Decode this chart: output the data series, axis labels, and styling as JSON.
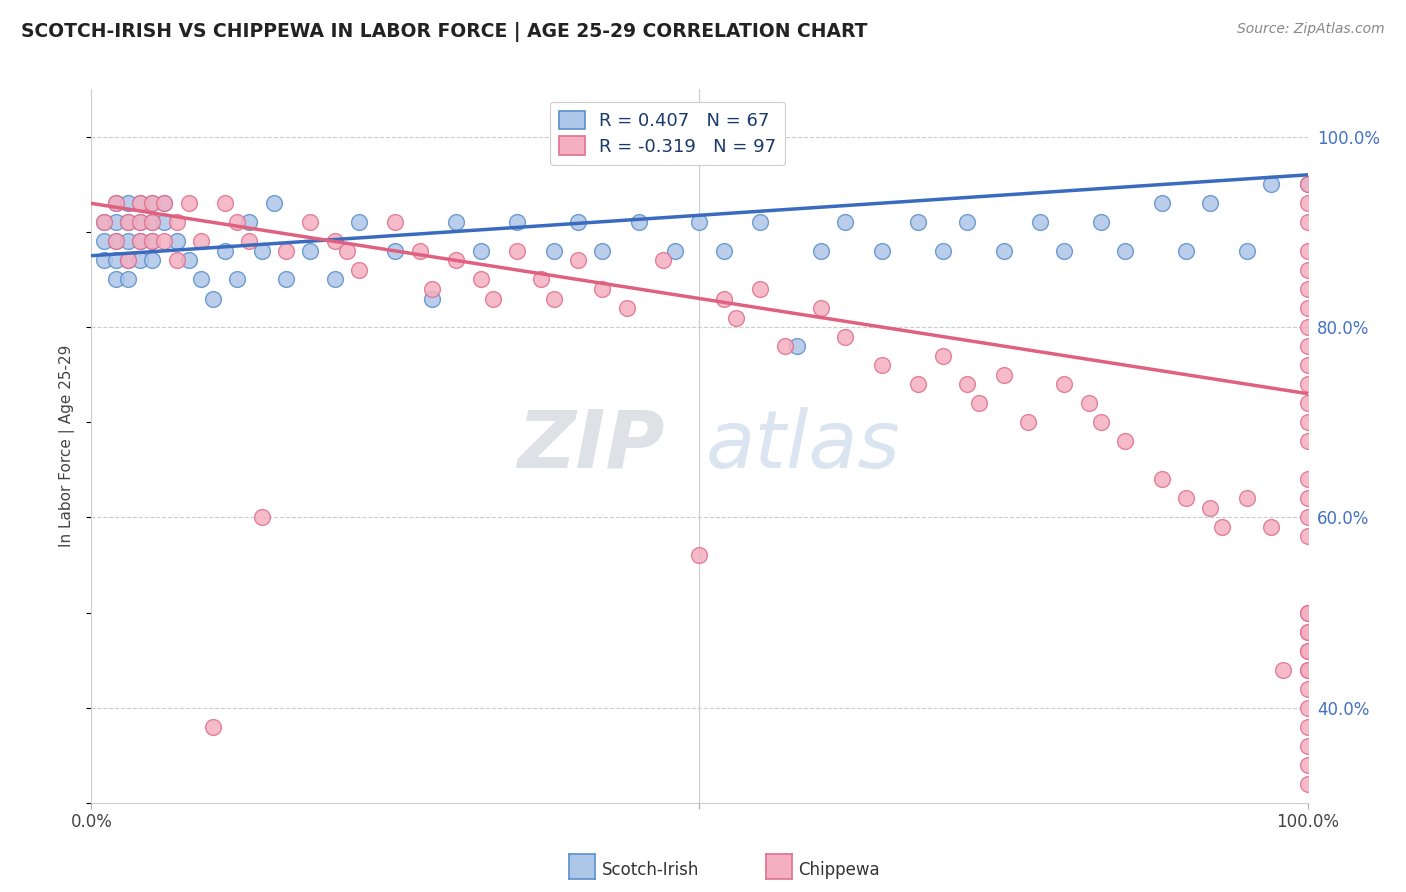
{
  "title": "SCOTCH-IRISH VS CHIPPEWA IN LABOR FORCE | AGE 25-29 CORRELATION CHART",
  "source_text": "Source: ZipAtlas.com",
  "ylabel": "In Labor Force | Age 25-29",
  "xlim": [
    0.0,
    1.0
  ],
  "ylim": [
    0.3,
    1.05
  ],
  "y_ticks_right": [
    0.4,
    0.6,
    0.8,
    1.0
  ],
  "y_tick_labels_right": [
    "40.0%",
    "60.0%",
    "80.0%",
    "100.0%"
  ],
  "scotch_irish_R": 0.407,
  "scotch_irish_N": 67,
  "chippewa_R": -0.319,
  "chippewa_N": 97,
  "scotch_irish_color": "#aec6e8",
  "chippewa_color": "#f4afc0",
  "scotch_irish_edge_color": "#5b8fcc",
  "chippewa_edge_color": "#e07090",
  "scotch_irish_line_color": "#3a6bbf",
  "chippewa_line_color": "#e06080",
  "watermark_zip": "ZIP",
  "watermark_atlas": "atlas",
  "scotch_irish_x": [
    0.01,
    0.01,
    0.01,
    0.02,
    0.02,
    0.02,
    0.02,
    0.02,
    0.03,
    0.03,
    0.03,
    0.03,
    0.03,
    0.04,
    0.04,
    0.04,
    0.04,
    0.05,
    0.05,
    0.05,
    0.05,
    0.06,
    0.06,
    0.07,
    0.08,
    0.09,
    0.1,
    0.11,
    0.12,
    0.13,
    0.14,
    0.15,
    0.16,
    0.18,
    0.2,
    0.22,
    0.25,
    0.28,
    0.3,
    0.32,
    0.35,
    0.38,
    0.4,
    0.42,
    0.45,
    0.48,
    0.5,
    0.52,
    0.55,
    0.58,
    0.6,
    0.62,
    0.65,
    0.68,
    0.7,
    0.72,
    0.75,
    0.78,
    0.8,
    0.83,
    0.85,
    0.88,
    0.9,
    0.92,
    0.95,
    0.97,
    1.0
  ],
  "scotch_irish_y": [
    0.91,
    0.89,
    0.87,
    0.93,
    0.91,
    0.89,
    0.87,
    0.85,
    0.93,
    0.91,
    0.89,
    0.87,
    0.85,
    0.93,
    0.91,
    0.89,
    0.87,
    0.93,
    0.91,
    0.89,
    0.87,
    0.93,
    0.91,
    0.89,
    0.87,
    0.85,
    0.83,
    0.88,
    0.85,
    0.91,
    0.88,
    0.93,
    0.85,
    0.88,
    0.85,
    0.91,
    0.88,
    0.83,
    0.91,
    0.88,
    0.91,
    0.88,
    0.91,
    0.88,
    0.91,
    0.88,
    0.91,
    0.88,
    0.91,
    0.78,
    0.88,
    0.91,
    0.88,
    0.91,
    0.88,
    0.91,
    0.88,
    0.91,
    0.88,
    0.91,
    0.88,
    0.93,
    0.88,
    0.93,
    0.88,
    0.95,
    0.95
  ],
  "chippewa_x": [
    0.01,
    0.02,
    0.02,
    0.03,
    0.03,
    0.04,
    0.04,
    0.04,
    0.05,
    0.05,
    0.05,
    0.06,
    0.06,
    0.07,
    0.07,
    0.08,
    0.09,
    0.1,
    0.11,
    0.12,
    0.13,
    0.14,
    0.16,
    0.18,
    0.2,
    0.21,
    0.22,
    0.25,
    0.27,
    0.28,
    0.3,
    0.32,
    0.33,
    0.35,
    0.37,
    0.38,
    0.4,
    0.42,
    0.44,
    0.47,
    0.5,
    0.52,
    0.53,
    0.55,
    0.57,
    0.6,
    0.62,
    0.65,
    0.68,
    0.7,
    0.72,
    0.73,
    0.75,
    0.77,
    0.8,
    0.82,
    0.83,
    0.85,
    0.88,
    0.9,
    0.92,
    0.93,
    0.95,
    0.97,
    0.98,
    1.0,
    1.0,
    1.0,
    1.0,
    1.0,
    1.0,
    1.0,
    1.0,
    1.0,
    1.0,
    1.0,
    1.0,
    1.0,
    1.0,
    1.0,
    1.0,
    1.0,
    1.0,
    1.0,
    1.0,
    1.0,
    1.0,
    1.0,
    1.0,
    1.0,
    1.0,
    1.0,
    1.0,
    1.0,
    1.0,
    1.0,
    1.0
  ],
  "chippewa_y": [
    0.91,
    0.93,
    0.89,
    0.91,
    0.87,
    0.93,
    0.91,
    0.89,
    0.93,
    0.91,
    0.89,
    0.93,
    0.89,
    0.91,
    0.87,
    0.93,
    0.89,
    0.38,
    0.93,
    0.91,
    0.89,
    0.6,
    0.88,
    0.91,
    0.89,
    0.88,
    0.86,
    0.91,
    0.88,
    0.84,
    0.87,
    0.85,
    0.83,
    0.88,
    0.85,
    0.83,
    0.87,
    0.84,
    0.82,
    0.87,
    0.56,
    0.83,
    0.81,
    0.84,
    0.78,
    0.82,
    0.79,
    0.76,
    0.74,
    0.77,
    0.74,
    0.72,
    0.75,
    0.7,
    0.74,
    0.72,
    0.7,
    0.68,
    0.64,
    0.62,
    0.61,
    0.59,
    0.62,
    0.59,
    0.44,
    0.95,
    0.93,
    0.91,
    0.88,
    0.86,
    0.84,
    0.82,
    0.8,
    0.78,
    0.76,
    0.74,
    0.72,
    0.7,
    0.68,
    0.64,
    0.62,
    0.6,
    0.58,
    0.5,
    0.48,
    0.46,
    0.44,
    0.34,
    0.32,
    0.5,
    0.48,
    0.46,
    0.44,
    0.42,
    0.4,
    0.38,
    0.36
  ]
}
